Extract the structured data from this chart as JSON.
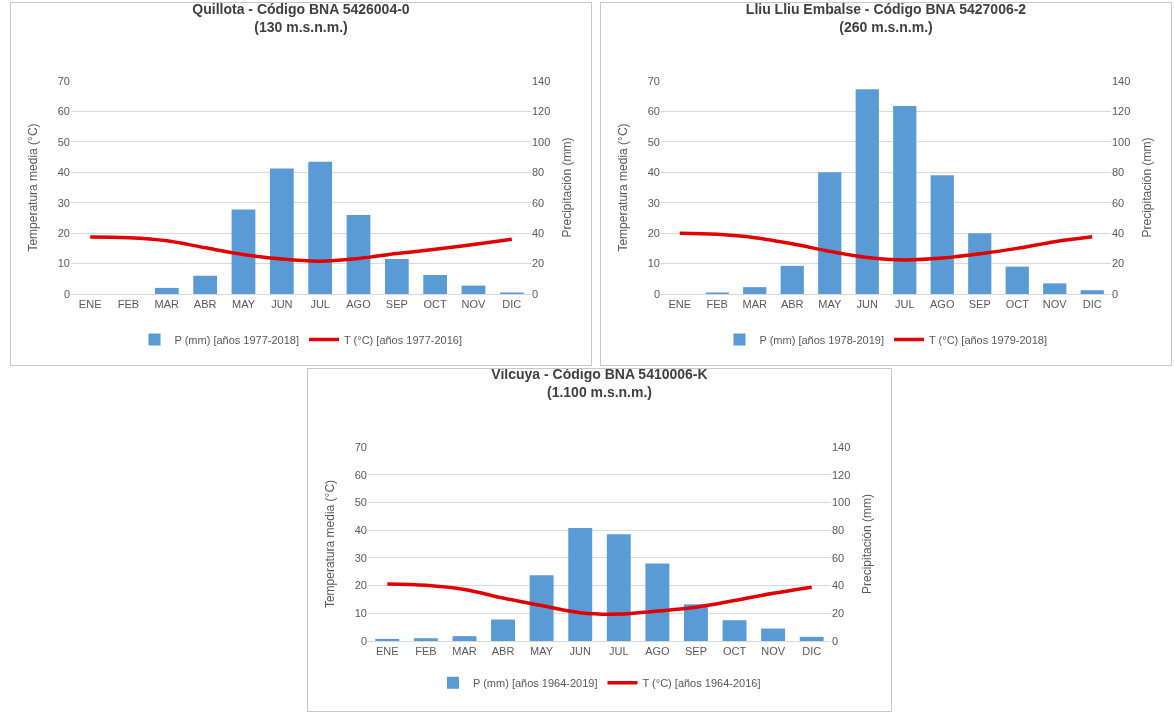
{
  "chart_data": [
    {
      "type": "bar",
      "title": "Quillota - Código BNA 5426004-0\n(130 m.s.n.m.)",
      "ylabel": "Temperatura media (°C)",
      "y2label": "Precipitación (mm)",
      "categories": [
        "ENE",
        "FEB",
        "MAR",
        "ABR",
        "MAY",
        "JUN",
        "JUL",
        "AGO",
        "SEP",
        "OCT",
        "NOV",
        "DIC"
      ],
      "series": [
        {
          "name": "P (mm) [años 1977-2018]",
          "axis": "y2",
          "color": "#5b9bd5",
          "values": [
            0,
            0,
            4,
            12,
            55.5,
            82.5,
            87,
            52,
            23,
            12.5,
            5.5,
            1
          ]
        },
        {
          "name": "T (°C) [años 1977-2016]",
          "type": "line",
          "color": "#e00000",
          "values": [
            18.7,
            18.5,
            17.5,
            15.2,
            13,
            11.5,
            10.8,
            11.7,
            13.3,
            14.7,
            16.3,
            18
          ]
        }
      ],
      "ylim": [
        0,
        70
      ],
      "yticks": [
        0,
        10,
        20,
        30,
        40,
        50,
        60,
        70
      ],
      "y2lim": [
        0,
        140
      ],
      "y2ticks": [
        0,
        20,
        40,
        60,
        80,
        100,
        120,
        140
      ],
      "grid": "y",
      "legend": "bottom",
      "marker": "none"
    },
    {
      "type": "bar",
      "title": "Lliu Lliu Embalse - Código BNA 5427006-2\n(260 m.s.n.m.)",
      "ylabel": "Temperatura media (°C)",
      "y2label": "Precipitación (mm)",
      "categories": [
        "ENE",
        "FEB",
        "MAR",
        "ABR",
        "MAY",
        "JUN",
        "JUL",
        "AGO",
        "SEP",
        "OCT",
        "NOV",
        "DIC"
      ],
      "series": [
        {
          "name": "P (mm) [años 1978-2019]",
          "axis": "y2",
          "color": "#5b9bd5",
          "values": [
            0,
            1,
            4.5,
            18.5,
            80,
            134.5,
            123.5,
            78,
            40,
            18,
            7,
            2.5
          ]
        },
        {
          "name": "T (°C) [años 1979-2018]",
          "type": "line",
          "color": "#e00000",
          "values": [
            20,
            19.6,
            18.5,
            16.5,
            14,
            12,
            11.2,
            11.8,
            13.2,
            15,
            17.2,
            18.8
          ]
        }
      ],
      "ylim": [
        0,
        70
      ],
      "yticks": [
        0,
        10,
        20,
        30,
        40,
        50,
        60,
        70
      ],
      "y2lim": [
        0,
        140
      ],
      "y2ticks": [
        0,
        20,
        40,
        60,
        80,
        100,
        120,
        140
      ],
      "grid": "y",
      "legend": "bottom",
      "marker": "none"
    },
    {
      "type": "bar",
      "title": "Vilcuya - Código BNA 5410006-K\n(1.100 m.s.n.m.)",
      "ylabel": "Temperatura media (°C)",
      "y2label": "Precipitación (mm)",
      "categories": [
        "ENE",
        "FEB",
        "MAR",
        "ABR",
        "MAY",
        "JUN",
        "JUL",
        "AGO",
        "SEP",
        "OCT",
        "NOV",
        "DIC"
      ],
      "series": [
        {
          "name": "P (mm) [años 1964-2019]",
          "axis": "y2",
          "color": "#5b9bd5",
          "values": [
            1.5,
            2,
            3.5,
            15.5,
            47.5,
            81.5,
            77,
            56,
            26.5,
            15,
            9,
            3
          ]
        },
        {
          "name": "T (°C) [años 1964-2016]",
          "type": "line",
          "color": "#e00000",
          "values": [
            20.6,
            20.1,
            18.6,
            15.5,
            12.8,
            10.2,
            9.7,
            10.8,
            12.2,
            14.6,
            17.2,
            19.4
          ]
        }
      ],
      "ylim": [
        0,
        70
      ],
      "yticks": [
        0,
        10,
        20,
        30,
        40,
        50,
        60,
        70
      ],
      "y2lim": [
        0,
        140
      ],
      "y2ticks": [
        0,
        20,
        40,
        60,
        80,
        100,
        120,
        140
      ],
      "grid": "y",
      "legend": "bottom",
      "marker": "none"
    }
  ]
}
